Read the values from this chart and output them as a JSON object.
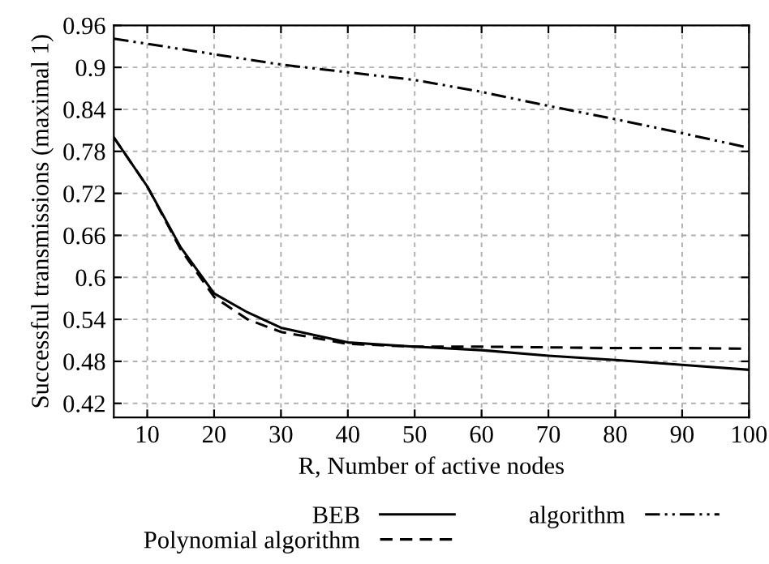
{
  "chart_data": {
    "type": "line",
    "xlabel": "R, Number of active nodes",
    "ylabel": "Successful transmissions (maximal 1)",
    "xlim": [
      5,
      100
    ],
    "xticks": [
      10,
      20,
      30,
      40,
      50,
      60,
      70,
      80,
      90,
      100
    ],
    "ylim": [
      0.4,
      0.96
    ],
    "yticks": [
      0.42,
      0.48,
      0.54,
      0.6,
      0.66,
      0.72,
      0.78,
      0.84,
      0.9,
      0.96
    ],
    "grid": true,
    "legend": "bottom",
    "series": [
      {
        "name": "BEB",
        "color": "#000000",
        "line_style": "solid",
        "x": [
          5,
          10,
          15,
          20,
          25,
          30,
          40,
          50,
          60,
          70,
          80,
          90,
          100
        ],
        "values": [
          0.8,
          0.73,
          0.643,
          0.577,
          0.55,
          0.528,
          0.507,
          0.501,
          0.496,
          0.488,
          0.482,
          0.475,
          0.468
        ]
      },
      {
        "name": "Polynomial algorithm",
        "color": "#000000",
        "line_style": "dashed",
        "x": [
          5,
          10,
          15,
          20,
          25,
          30,
          40,
          50,
          60,
          70,
          80,
          90,
          100
        ],
        "values": [
          0.8,
          0.73,
          0.64,
          0.572,
          0.54,
          0.522,
          0.505,
          0.501,
          0.501,
          0.5,
          0.499,
          0.499,
          0.498
        ]
      },
      {
        "name": "algorithm",
        "color": "#000000",
        "line_style": "dashdotdot",
        "x": [
          5,
          30,
          50,
          60,
          70,
          80,
          90,
          100
        ],
        "values": [
          0.941,
          0.904,
          0.882,
          0.865,
          0.845,
          0.826,
          0.806,
          0.785
        ]
      }
    ]
  }
}
